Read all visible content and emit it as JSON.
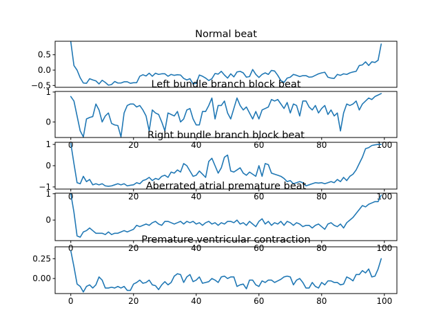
{
  "chart_data": [
    {
      "type": "line",
      "title": "Normal beat",
      "xlim": [
        -5,
        104
      ],
      "ylim": [
        -0.56,
        0.94
      ],
      "xticks": [],
      "yticks": [
        0.5,
        0.0,
        -0.5
      ],
      "ytick_labels": [
        "0.5",
        "0.0",
        "−0.5"
      ],
      "color": "#1f77b4",
      "values": [
        0.92,
        0.15,
        0.0,
        -0.25,
        -0.42,
        -0.43,
        -0.28,
        -0.32,
        -0.35,
        -0.45,
        -0.33,
        -0.4,
        -0.49,
        -0.47,
        -0.37,
        -0.42,
        -0.42,
        -0.38,
        -0.38,
        -0.43,
        -0.41,
        -0.41,
        -0.2,
        -0.15,
        -0.19,
        -0.1,
        -0.2,
        -0.1,
        -0.14,
        -0.12,
        -0.12,
        -0.2,
        -0.14,
        -0.17,
        -0.15,
        -0.16,
        -0.27,
        -0.32,
        -0.28,
        -0.45,
        -0.43,
        -0.16,
        -0.2,
        -0.26,
        -0.34,
        -0.28,
        -0.11,
        -0.13,
        -0.04,
        -0.16,
        -0.26,
        -0.12,
        -0.22,
        -0.06,
        -0.04,
        -0.09,
        -0.23,
        -0.21,
        0.02,
        -0.14,
        -0.24,
        -0.14,
        -0.09,
        -0.14,
        -0.01,
        -0.03,
        -0.17,
        -0.34,
        -0.4,
        -0.26,
        -0.23,
        -0.14,
        -0.17,
        -0.21,
        -0.18,
        -0.18,
        -0.23,
        -0.22,
        -0.17,
        -0.12,
        -0.09,
        -0.07,
        -0.23,
        -0.26,
        -0.27,
        -0.14,
        -0.17,
        -0.12,
        -0.14,
        -0.09,
        -0.06,
        -0.04,
        0.15,
        0.17,
        0.27,
        0.15,
        0.27,
        0.25,
        0.32,
        0.85
      ]
    },
    {
      "type": "line",
      "title": "Left bundle branch block beat",
      "xlim": [
        -5,
        104
      ],
      "ylim": [
        -0.52,
        1.02
      ],
      "xticks": [
        0,
        20,
        40,
        60,
        80,
        100
      ],
      "xtick_labels": [
        "0",
        "20",
        "40",
        "60",
        "80",
        "100"
      ],
      "yticks": [
        1,
        0
      ],
      "ytick_labels": [
        "1",
        "0"
      ],
      "color": "#1f77b4",
      "values": [
        0.85,
        0.7,
        0.2,
        -0.3,
        -0.5,
        0.1,
        0.15,
        0.18,
        0.6,
        0.4,
        0.0,
        0.2,
        0.3,
        -0.05,
        -0.1,
        -0.12,
        -0.5,
        0.3,
        0.55,
        0.6,
        0.6,
        0.5,
        0.55,
        0.4,
        0.2,
        -0.3,
        0.4,
        0.3,
        0.25,
        0.0,
        -0.3,
        0.3,
        0.25,
        0.2,
        0.35,
        0.0,
        0.1,
        0.4,
        0.45,
        0.1,
        -0.1,
        -0.1,
        0.35,
        0.35,
        0.55,
        0.8,
        0.1,
        0.55,
        0.55,
        0.7,
        0.3,
        0.1,
        0.45,
        0.8,
        0.55,
        0.4,
        0.5,
        0.3,
        0.1,
        0.35,
        0.1,
        0.4,
        0.45,
        0.5,
        0.75,
        0.7,
        0.75,
        0.6,
        0.45,
        0.65,
        0.3,
        0.6,
        0.55,
        0.2,
        0.7,
        0.7,
        0.5,
        0.4,
        0.55,
        0.3,
        0.45,
        0.55,
        0.25,
        0.4,
        0.2,
        0.3,
        -0.3,
        0.3,
        0.6,
        0.55,
        0.6,
        0.7,
        0.4,
        0.6,
        0.7,
        0.8,
        0.75,
        0.85,
        0.9,
        0.95
      ]
    },
    {
      "type": "line",
      "title": "Right bundle branch block beat",
      "xlim": [
        -5,
        104
      ],
      "ylim": [
        -1.1,
        1.1
      ],
      "xticks": [
        0,
        20,
        40,
        60,
        80,
        100
      ],
      "xtick_labels": [
        "0",
        "20",
        "40",
        "60",
        "80",
        "100"
      ],
      "yticks": [
        1,
        0,
        -1
      ],
      "ytick_labels": [
        "1",
        "0",
        "−1"
      ],
      "color": "#1f77b4",
      "values": [
        1.05,
        0.1,
        -0.8,
        -0.85,
        -0.5,
        -0.75,
        -0.65,
        -0.9,
        -0.85,
        -0.9,
        -0.85,
        -0.95,
        -0.97,
        -0.95,
        -0.9,
        -0.85,
        -0.9,
        -0.85,
        -0.95,
        -0.92,
        -0.9,
        -0.8,
        -0.85,
        -0.7,
        -0.65,
        -0.55,
        -0.7,
        -0.6,
        -0.65,
        -0.5,
        -0.45,
        -0.55,
        -0.3,
        -0.35,
        -0.2,
        -0.3,
        0.1,
        0.0,
        -0.25,
        -0.5,
        -0.45,
        -0.25,
        -0.4,
        -0.55,
        0.2,
        0.35,
        0.0,
        -0.35,
        -0.1,
        0.4,
        0.5,
        -0.25,
        -0.3,
        -0.2,
        -0.1,
        -0.35,
        -0.45,
        -0.3,
        -0.4,
        -0.5,
        0.0,
        -0.5,
        0.1,
        0.05,
        -0.35,
        -0.4,
        -0.45,
        -0.5,
        -0.6,
        -0.75,
        -0.7,
        -0.85,
        -0.8,
        -0.75,
        -0.8,
        -0.95,
        -0.9,
        -0.85,
        -0.8,
        -0.82,
        -0.8,
        -0.85,
        -0.8,
        -0.75,
        -0.8,
        -0.65,
        -0.75,
        -0.55,
        -0.7,
        -0.5,
        -0.4,
        -0.2,
        0.1,
        0.4,
        0.8,
        0.85,
        0.95,
        0.98,
        1.0,
        1.0
      ]
    },
    {
      "type": "line",
      "title": "Aberrated atrial premature beat",
      "xlim": [
        -5,
        104
      ],
      "ylim": [
        -0.78,
        1.02
      ],
      "xticks": [
        0,
        20,
        40,
        60,
        80,
        100
      ],
      "xtick_labels": [
        "0",
        "20",
        "40",
        "60",
        "80",
        "100"
      ],
      "yticks": [
        1,
        0
      ],
      "ytick_labels": [
        "1",
        "0"
      ],
      "color": "#1f77b4",
      "values": [
        1.0,
        0.3,
        -0.6,
        -0.65,
        -0.45,
        -0.4,
        -0.3,
        -0.4,
        -0.5,
        -0.5,
        -0.5,
        -0.55,
        -0.45,
        -0.55,
        -0.5,
        -0.5,
        -0.45,
        -0.4,
        -0.45,
        -0.4,
        -0.35,
        -0.2,
        -0.25,
        -0.2,
        -0.15,
        -0.2,
        -0.1,
        -0.05,
        -0.15,
        -0.2,
        -0.05,
        -0.05,
        -0.1,
        -0.15,
        -0.1,
        -0.05,
        -0.15,
        -0.05,
        -0.1,
        -0.05,
        -0.15,
        -0.1,
        -0.2,
        -0.1,
        -0.05,
        -0.15,
        -0.1,
        -0.2,
        -0.1,
        -0.15,
        -0.05,
        -0.05,
        -0.1,
        0.0,
        -0.15,
        -0.1,
        -0.2,
        -0.05,
        -0.15,
        -0.25,
        -0.05,
        0.05,
        -0.15,
        -0.05,
        -0.2,
        -0.1,
        -0.15,
        -0.05,
        -0.2,
        -0.05,
        -0.1,
        -0.2,
        -0.1,
        -0.15,
        -0.25,
        -0.2,
        -0.2,
        -0.3,
        -0.2,
        -0.15,
        -0.25,
        -0.35,
        -0.15,
        -0.1,
        -0.2,
        -0.25,
        -0.15,
        -0.3,
        -0.1,
        0.0,
        0.1,
        0.25,
        0.4,
        0.55,
        0.5,
        0.6,
        0.65,
        0.7,
        0.7,
        0.95
      ]
    },
    {
      "type": "line",
      "title": "Premature ventricular contraction",
      "xlim": [
        -5,
        104
      ],
      "ylim": [
        -0.19,
        0.4
      ],
      "xticks": [
        0,
        20,
        40,
        60,
        80,
        100
      ],
      "xtick_labels": [
        "0",
        "20",
        "40",
        "60",
        "80",
        "100"
      ],
      "yticks": [
        0.25,
        0.0
      ],
      "ytick_labels": [
        "0.25",
        "0.00"
      ],
      "color": "#1f77b4",
      "values": [
        0.35,
        0.15,
        -0.07,
        -0.1,
        -0.17,
        -0.1,
        -0.08,
        -0.12,
        -0.08,
        0.02,
        -0.02,
        -0.12,
        -0.12,
        -0.11,
        -0.12,
        -0.1,
        -0.12,
        -0.1,
        -0.15,
        -0.15,
        -0.07,
        -0.05,
        -0.02,
        -0.06,
        -0.05,
        -0.02,
        -0.08,
        -0.09,
        -0.14,
        -0.08,
        -0.04,
        -0.08,
        -0.05,
        0.03,
        0.06,
        0.05,
        -0.05,
        0.02,
        0.05,
        -0.04,
        -0.02,
        0.02,
        -0.06,
        -0.05,
        -0.04,
        0.0,
        -0.02,
        -0.05,
        0.02,
        0.03,
        0.0,
        0.02,
        0.02,
        -0.1,
        -0.08,
        -0.07,
        -0.13,
        -0.02,
        -0.02,
        -0.08,
        -0.1,
        -0.03,
        -0.05,
        -0.02,
        -0.02,
        -0.05,
        -0.03,
        -0.01,
        0.02,
        0.03,
        0.02,
        -0.08,
        -0.02,
        0.0,
        -0.05,
        -0.12,
        -0.12,
        -0.05,
        -0.1,
        -0.12,
        -0.05,
        -0.08,
        -0.03,
        -0.03,
        -0.05,
        -0.05,
        -0.08,
        -0.07,
        0.02,
        0.0,
        -0.03,
        0.05,
        0.05,
        0.1,
        0.07,
        0.12,
        0.02,
        0.03,
        0.12,
        0.25
      ]
    }
  ]
}
